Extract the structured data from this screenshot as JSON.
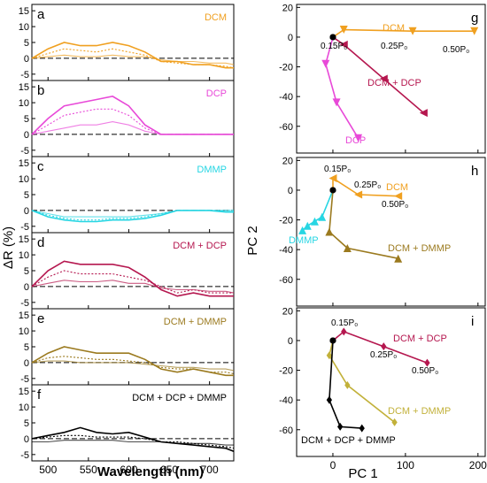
{
  "colors": {
    "dcm": "#f0a020",
    "dcp": "#e849d8",
    "dmmp": "#27d6e3",
    "dcm_dcp": "#b5174f",
    "dcm_dmmp": "#9b7a1f",
    "all": "#000000",
    "dcm_dmmp_light": "#c2b13a"
  },
  "left_axes": {
    "xlabel": "Wavelength (nm)",
    "ylabel": "ΔR (%)",
    "xticks": [
      "500",
      "550",
      "600",
      "650",
      "700"
    ],
    "ytick_labels": [
      "15",
      "10",
      "5",
      "0",
      "-5"
    ]
  },
  "right_axes": {
    "xlabel": "PC 1",
    "ylabel": "PC 2",
    "g_yticks": [
      "20",
      "0",
      "-20",
      "-40",
      "-60"
    ],
    "h_yticks": [
      "20",
      "0",
      "-20",
      "-40",
      "-60"
    ],
    "i_yticks": [
      "20",
      "0",
      "-20",
      "-40",
      "-60"
    ],
    "xticks": [
      "0",
      "100",
      "200"
    ]
  },
  "panels": {
    "a": {
      "letter": "a",
      "label": "DCM"
    },
    "b": {
      "letter": "b",
      "label": "DCP"
    },
    "c": {
      "letter": "c",
      "label": "DMMP"
    },
    "d": {
      "letter": "d",
      "label": "DCM + DCP"
    },
    "e": {
      "letter": "e",
      "label": "DCM + DMMP"
    },
    "f": {
      "letter": "f",
      "label": "DCM + DCP + DMMP"
    },
    "g": {
      "letter": "g",
      "labels": [
        "DCM",
        "DCM + DCP",
        "DCP"
      ],
      "power_labels": [
        "0.15P₀",
        "0.25P₀",
        "0.50P₀"
      ]
    },
    "h": {
      "letter": "h",
      "labels": [
        "DCM",
        "DMMP",
        "DCM + DMMP"
      ],
      "power_labels": [
        "0.15P₀",
        "0.25P₀",
        "0.50P₀"
      ]
    },
    "i": {
      "letter": "i",
      "labels": [
        "DCM + DCP",
        "DCM + DMMP",
        "DCM + DCP + DMMP"
      ],
      "power_labels": [
        "0.15P₀",
        "0.25P₀",
        "0.50P₀"
      ]
    }
  },
  "chart_data": [
    {
      "type": "line",
      "panel": "a",
      "xlim": [
        480,
        730
      ],
      "ylim": [
        -7,
        17
      ],
      "x": [
        480,
        500,
        520,
        540,
        560,
        580,
        600,
        620,
        640,
        660,
        680,
        700,
        720,
        730
      ],
      "series": [
        {
          "style": "solid",
          "values": [
            0,
            3,
            5,
            4,
            4,
            5,
            4,
            2,
            -1,
            -1,
            -2,
            -2,
            -3,
            -3
          ]
        },
        {
          "style": "dotted",
          "values": [
            0,
            1.5,
            3,
            2.5,
            2,
            3,
            2,
            1,
            -1,
            -1.5,
            -2,
            -2,
            -2.5,
            -3
          ]
        },
        {
          "style": "solid-thin",
          "values": [
            0,
            0.5,
            1,
            0.5,
            0.5,
            1,
            0.5,
            0.5,
            -0.5,
            -1,
            -1,
            -1.5,
            -1.5,
            -2
          ]
        }
      ]
    },
    {
      "type": "line",
      "panel": "b",
      "xlim": [
        480,
        730
      ],
      "ylim": [
        -7,
        17
      ],
      "x": [
        480,
        500,
        520,
        540,
        560,
        580,
        600,
        620,
        640,
        660,
        680,
        700,
        720,
        730
      ],
      "series": [
        {
          "style": "solid",
          "values": [
            0,
            5,
            9,
            10,
            11,
            12,
            9,
            3,
            0,
            0,
            0,
            0,
            0,
            0
          ]
        },
        {
          "style": "dotted",
          "values": [
            0,
            3,
            6,
            7,
            8,
            8,
            6,
            2,
            0,
            0,
            0,
            0,
            0,
            0
          ]
        },
        {
          "style": "solid-thin",
          "values": [
            0,
            1,
            2,
            3,
            3,
            4,
            3,
            1,
            0,
            0,
            0,
            0,
            0,
            0
          ]
        }
      ]
    },
    {
      "type": "line",
      "panel": "c",
      "xlim": [
        480,
        730
      ],
      "ylim": [
        -7,
        17
      ],
      "x": [
        480,
        500,
        520,
        540,
        560,
        580,
        600,
        620,
        640,
        660,
        680,
        700,
        720,
        730
      ],
      "series": [
        {
          "style": "solid",
          "values": [
            0,
            -2,
            -3,
            -3.5,
            -3.5,
            -3,
            -3,
            -2.5,
            -1.5,
            0,
            0,
            0,
            -0.5,
            -0.5
          ]
        },
        {
          "style": "dotted",
          "values": [
            0,
            -1.5,
            -2.5,
            -3,
            -3,
            -2.5,
            -2.5,
            -2,
            -1,
            0,
            0,
            0,
            0,
            0
          ]
        },
        {
          "style": "solid-thin",
          "values": [
            0,
            -1,
            -2,
            -2,
            -2,
            -2,
            -2,
            -1.5,
            -1,
            0,
            0,
            0,
            0,
            0
          ]
        }
      ]
    },
    {
      "type": "line",
      "panel": "d",
      "xlim": [
        480,
        730
      ],
      "ylim": [
        -7,
        17
      ],
      "x": [
        480,
        500,
        520,
        540,
        560,
        580,
        600,
        620,
        640,
        660,
        680,
        700,
        720,
        730
      ],
      "series": [
        {
          "style": "solid",
          "values": [
            0,
            5,
            8,
            7,
            7,
            7,
            6,
            3,
            -1,
            -3,
            -2,
            -3,
            -3,
            -3
          ]
        },
        {
          "style": "dotted",
          "values": [
            0,
            3,
            5,
            4,
            4,
            4,
            3,
            2,
            0,
            -2,
            -1,
            -2,
            -2,
            -2
          ]
        },
        {
          "style": "solid-thin",
          "values": [
            0,
            1,
            2,
            1.5,
            1.5,
            2,
            1,
            1,
            -0.5,
            -1,
            -1,
            -1.5,
            -1.5,
            -2
          ]
        }
      ]
    },
    {
      "type": "line",
      "panel": "e",
      "xlim": [
        480,
        730
      ],
      "ylim": [
        -7,
        17
      ],
      "x": [
        480,
        500,
        520,
        540,
        560,
        580,
        600,
        620,
        640,
        660,
        680,
        700,
        720,
        730
      ],
      "series": [
        {
          "style": "solid",
          "values": [
            0,
            3,
            5,
            4,
            3,
            3,
            3,
            1,
            -2,
            -3,
            -2,
            -3,
            -4,
            -4
          ]
        },
        {
          "style": "dotted",
          "values": [
            0,
            1.5,
            2,
            1.5,
            1,
            1,
            0.5,
            0,
            -1.5,
            -2,
            -2,
            -3,
            -3,
            -3.5
          ]
        },
        {
          "style": "solid-thin",
          "values": [
            0,
            0.5,
            0.5,
            0,
            0,
            0,
            0,
            -0.5,
            -1,
            -1.5,
            -1.5,
            -2,
            -2,
            -2.5
          ]
        }
      ]
    },
    {
      "type": "line",
      "panel": "f",
      "xlim": [
        480,
        730
      ],
      "ylim": [
        -7,
        17
      ],
      "x": [
        480,
        500,
        520,
        540,
        560,
        580,
        600,
        620,
        640,
        660,
        680,
        700,
        720,
        730
      ],
      "series": [
        {
          "style": "solid",
          "values": [
            0,
            1,
            2,
            3.5,
            2,
            1.5,
            2,
            0.5,
            -1,
            -1.5,
            -2,
            -2.5,
            -3,
            -4
          ]
        },
        {
          "style": "dotted",
          "values": [
            0,
            0.5,
            1,
            1,
            0.5,
            0.5,
            0.5,
            0,
            -1,
            -1,
            -1.5,
            -2,
            -2.5,
            -3
          ]
        },
        {
          "style": "solid-thin",
          "values": [
            -1,
            -1,
            -0.5,
            -0.5,
            -0.5,
            -0.5,
            -1,
            -1,
            -1,
            -1.5,
            -1.5,
            -1.5,
            -2,
            -2
          ]
        }
      ]
    },
    {
      "type": "scatter",
      "panel": "g",
      "xlim": [
        -50,
        210
      ],
      "ylim": [
        -78,
        22
      ],
      "series": [
        {
          "name": "DCM",
          "x": [
            0,
            15,
            110,
            195
          ],
          "y": [
            0,
            5,
            4,
            4
          ]
        },
        {
          "name": "DCM + DCP",
          "x": [
            0,
            15,
            70,
            125
          ],
          "y": [
            0,
            -5,
            -28,
            -51
          ]
        },
        {
          "name": "DCP",
          "x": [
            0,
            -10,
            5,
            35
          ],
          "y": [
            0,
            -18,
            -44,
            -68
          ]
        }
      ]
    },
    {
      "type": "scatter",
      "panel": "h",
      "xlim": [
        -50,
        210
      ],
      "ylim": [
        -78,
        22
      ],
      "series": [
        {
          "name": "DCM",
          "x": [
            0,
            0,
            35,
            90
          ],
          "y": [
            0,
            8,
            -3,
            -4
          ]
        },
        {
          "name": "DMMP",
          "x": [
            0,
            -15,
            -25,
            -35,
            -42
          ],
          "y": [
            0,
            -18,
            -21,
            -24,
            -27
          ]
        },
        {
          "name": "DCM + DMMP",
          "x": [
            0,
            -5,
            20,
            90
          ],
          "y": [
            0,
            -28,
            -39,
            -46
          ]
        }
      ]
    },
    {
      "type": "scatter",
      "panel": "i",
      "xlim": [
        -50,
        210
      ],
      "ylim": [
        -78,
        22
      ],
      "series": [
        {
          "name": "DCM + DCP",
          "x": [
            0,
            15,
            70,
            130
          ],
          "y": [
            0,
            6,
            -4,
            -15
          ]
        },
        {
          "name": "DCM + DMMP",
          "x": [
            0,
            -5,
            20,
            85
          ],
          "y": [
            0,
            -10,
            -30,
            -55
          ]
        },
        {
          "name": "DCM + DCP + DMMP",
          "x": [
            0,
            -5,
            10,
            40
          ],
          "y": [
            0,
            -40,
            -58,
            -59
          ]
        }
      ]
    }
  ]
}
